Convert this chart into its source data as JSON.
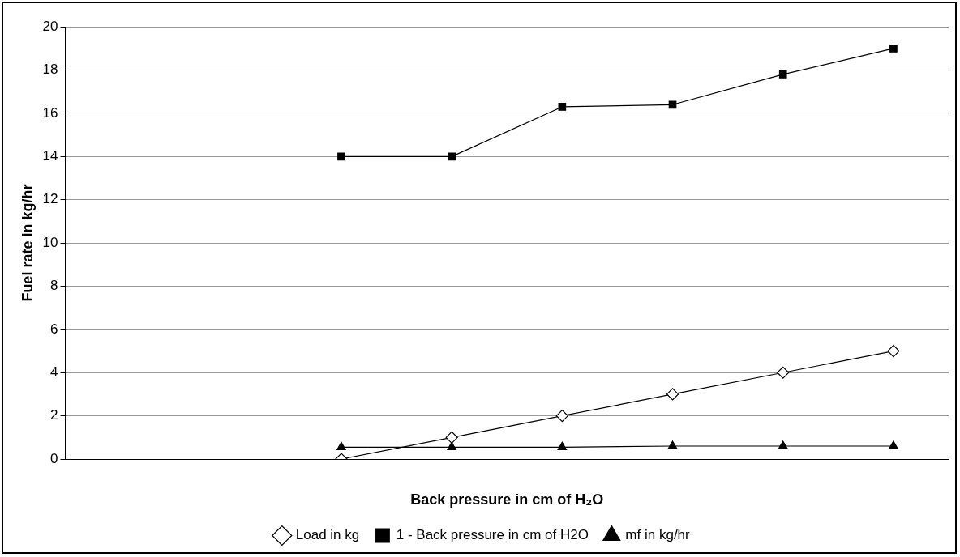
{
  "chart_data": {
    "type": "line",
    "xlabel": "Back pressure in cm of H₂O",
    "ylabel": "Fuel rate in kg/hr",
    "categories": [
      null,
      null,
      null,
      null,
      null,
      null,
      null,
      null
    ],
    "series": [
      {
        "name": "Load in kg",
        "color": "#000000",
        "marker": "diamond",
        "values": [
          null,
          null,
          0,
          1,
          2,
          3,
          4,
          5
        ]
      },
      {
        "name": "1 - Back pressure in cm of H2O",
        "color": "#000000",
        "marker": "square",
        "values": [
          null,
          null,
          14,
          14,
          16.3,
          16.4,
          17.8,
          19
        ]
      },
      {
        "name": "mf in kg/hr",
        "color": "#000000",
        "marker": "triangle",
        "values": [
          null,
          null,
          0.55,
          0.55,
          0.55,
          0.6,
          0.6,
          0.6
        ]
      }
    ],
    "ylim": [
      0,
      20
    ],
    "yticks": [
      0,
      2,
      4,
      6,
      8,
      10,
      12,
      14,
      16,
      18,
      20
    ],
    "grid": "y",
    "legend": "bottom",
    "line_style": "solid"
  }
}
